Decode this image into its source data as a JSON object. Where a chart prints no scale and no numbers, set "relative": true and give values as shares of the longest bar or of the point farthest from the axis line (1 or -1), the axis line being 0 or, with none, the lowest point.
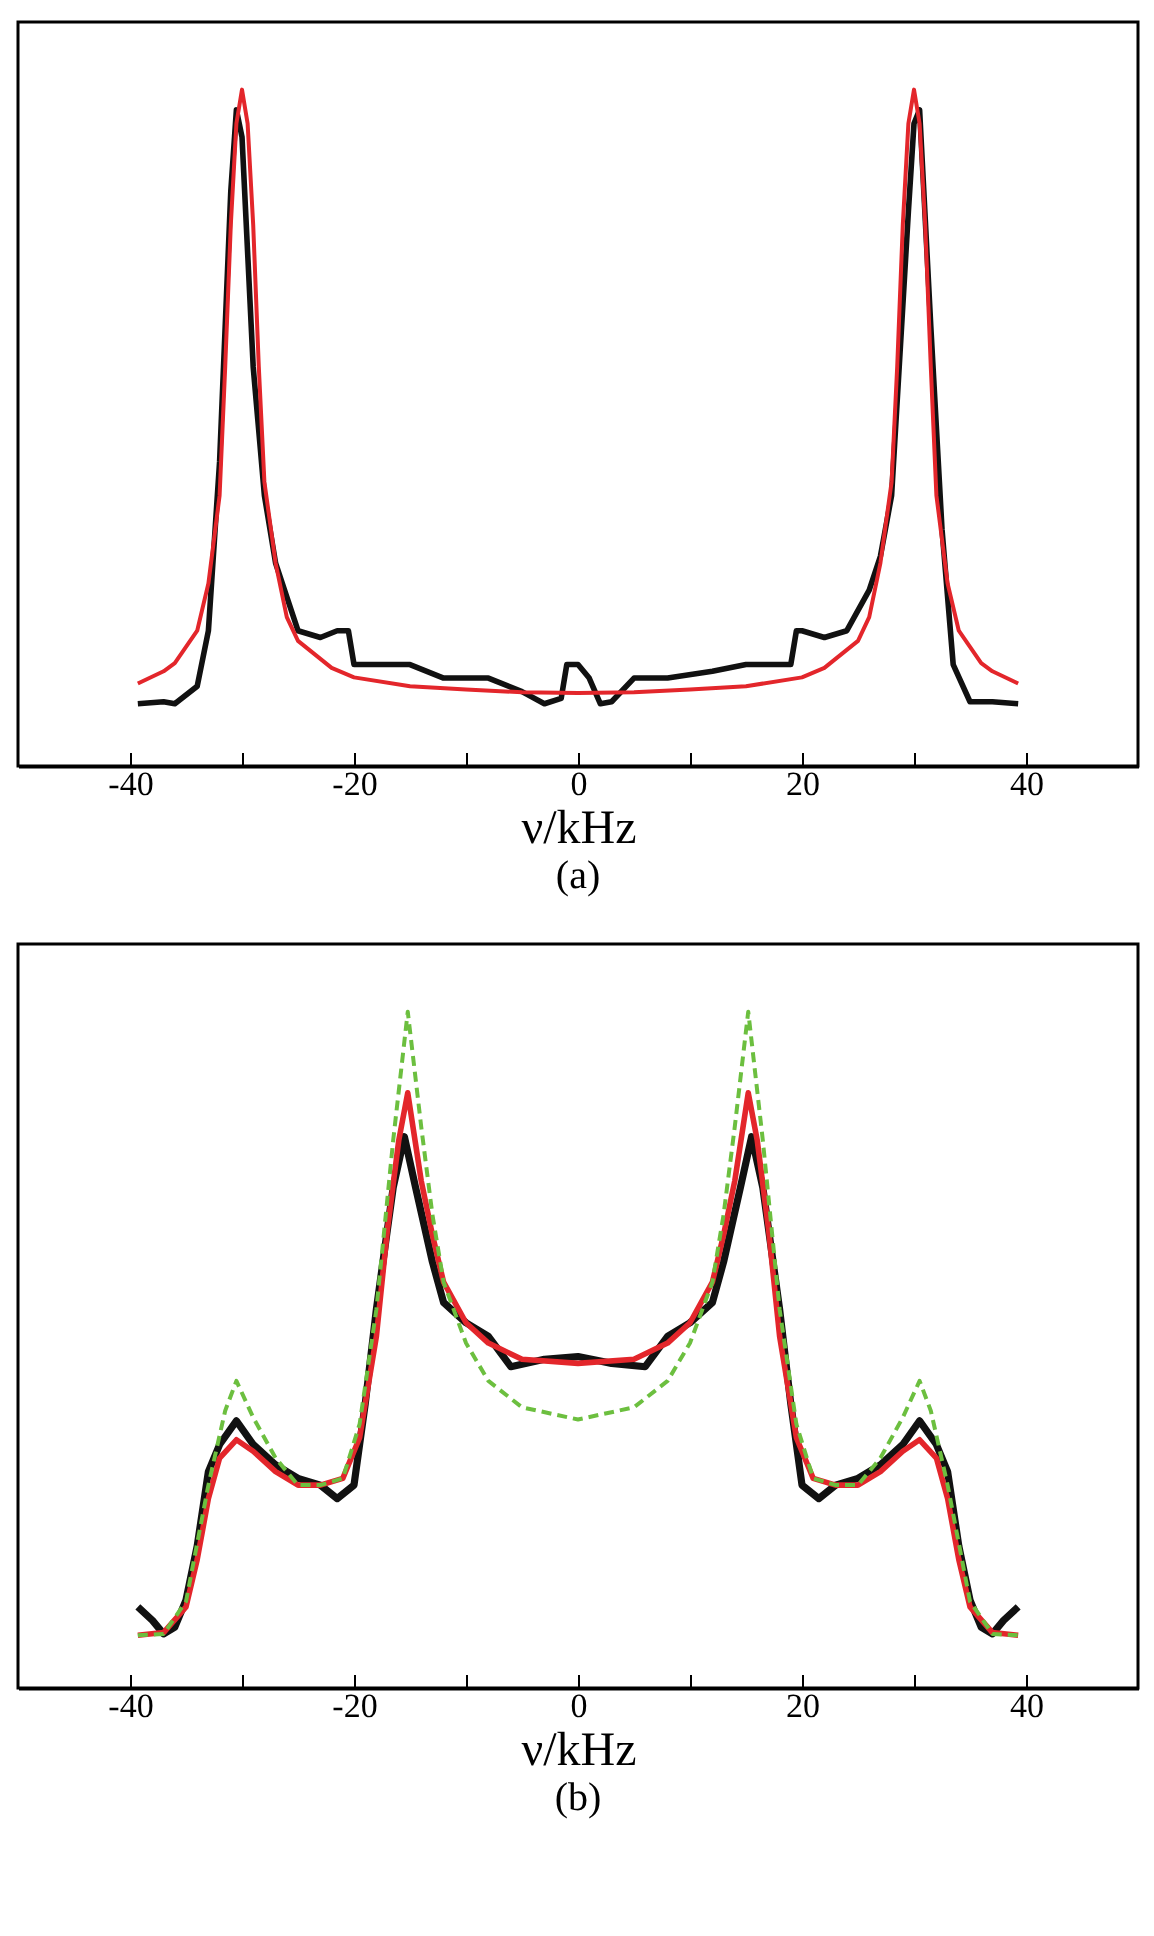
{
  "chart_data": [
    {
      "type": "line",
      "xlabel": "ν/kHz",
      "annotations": [
        "(a)"
      ],
      "relative": true,
      "tick_labels": "x",
      "xlim": [
        -50,
        50
      ],
      "xticks": [
        -40,
        {
          "value": -30,
          "label": null
        },
        -20,
        {
          "value": -10,
          "label": null
        },
        0,
        {
          "value": 10,
          "label": null
        },
        20,
        {
          "value": 30,
          "label": null
        },
        40
      ],
      "series": [
        {
          "color": "#111111",
          "line_style": "solid",
          "x": [
            -39.3,
            -37,
            -36,
            -34,
            -33,
            -32,
            -31,
            -30.5,
            -30,
            -29,
            -28,
            -27,
            -26,
            -25,
            -23,
            -21.5,
            -20.5,
            -20,
            -15,
            -12,
            -8,
            -5,
            -3,
            -1.5,
            -1,
            0,
            1,
            2,
            3,
            5,
            8,
            12,
            15,
            19,
            19.5,
            20,
            22,
            24,
            26,
            27,
            28,
            29.5,
            30,
            30.5,
            31.5,
            32.5,
            33.5,
            35,
            37,
            39.3
          ],
          "values": [
            0.092,
            0.095,
            0.092,
            0.118,
            0.2,
            0.45,
            0.85,
            0.97,
            0.93,
            0.59,
            0.4,
            0.3,
            0.25,
            0.2,
            0.19,
            0.2,
            0.2,
            0.15,
            0.15,
            0.13,
            0.13,
            0.11,
            0.092,
            0.1,
            0.15,
            0.15,
            0.13,
            0.092,
            0.095,
            0.13,
            0.13,
            0.14,
            0.15,
            0.15,
            0.2,
            0.2,
            0.19,
            0.2,
            0.26,
            0.31,
            0.4,
            0.82,
            0.95,
            0.97,
            0.65,
            0.35,
            0.15,
            0.095,
            0.095,
            0.092
          ]
        },
        {
          "color": "#e3262b",
          "line_style": "solid",
          "x": [
            -39.3,
            -37,
            -36,
            -34,
            -33,
            -32,
            -31.5,
            -31,
            -30.5,
            -30,
            -29.5,
            -29,
            -28.5,
            -28,
            -27,
            -26,
            -25,
            -22,
            -20,
            -15,
            -10,
            -5,
            0,
            5,
            10,
            15,
            20,
            22,
            25,
            26,
            27,
            28,
            28.5,
            29,
            29.5,
            30,
            30.5,
            31,
            31.5,
            32,
            33,
            34,
            36,
            37,
            39.3
          ],
          "values": [
            0.122,
            0.14,
            0.152,
            0.2,
            0.27,
            0.4,
            0.59,
            0.8,
            0.95,
            1,
            0.95,
            0.8,
            0.59,
            0.42,
            0.3,
            0.22,
            0.185,
            0.145,
            0.131,
            0.118,
            0.113,
            0.109,
            0.108,
            0.109,
            0.113,
            0.118,
            0.131,
            0.145,
            0.185,
            0.22,
            0.3,
            0.42,
            0.59,
            0.8,
            0.95,
            1,
            0.95,
            0.8,
            0.59,
            0.4,
            0.27,
            0.2,
            0.152,
            0.14,
            0.122
          ]
        }
      ]
    },
    {
      "type": "line",
      "xlabel": "ν/kHz",
      "annotations": [
        "(b)"
      ],
      "relative": true,
      "tick_labels": "x",
      "xlim": [
        -50,
        50
      ],
      "xticks": [
        -40,
        {
          "value": -30,
          "label": null
        },
        -20,
        {
          "value": -10,
          "label": null
        },
        0,
        {
          "value": 10,
          "label": null
        },
        20,
        {
          "value": 30,
          "label": null
        },
        40
      ],
      "series": [
        {
          "color": "#111111",
          "line_style": "solid",
          "x": [
            -39.3,
            -38,
            -37,
            -36,
            -35,
            -34,
            -33,
            -32,
            -30.5,
            -29,
            -27,
            -25,
            -23,
            -21.5,
            -20,
            -19,
            -18,
            -16.5,
            -15.5,
            -14.5,
            -13,
            -12,
            -10,
            -8,
            -6,
            -3,
            0,
            3,
            6,
            8,
            10,
            12,
            13,
            14.5,
            15.5,
            16.5,
            18,
            19,
            20,
            21.5,
            23,
            25,
            27,
            29,
            30.5,
            32,
            33,
            34,
            35,
            36,
            37,
            38,
            39.3
          ],
          "values": [
            0.12,
            0.1,
            0.08,
            0.09,
            0.13,
            0.21,
            0.32,
            0.36,
            0.395,
            0.36,
            0.33,
            0.31,
            0.3,
            0.28,
            0.3,
            0.42,
            0.56,
            0.74,
            0.815,
            0.74,
            0.63,
            0.57,
            0.54,
            0.52,
            0.475,
            0.486,
            0.49,
            0.48,
            0.475,
            0.52,
            0.54,
            0.57,
            0.63,
            0.74,
            0.815,
            0.74,
            0.56,
            0.42,
            0.3,
            0.28,
            0.3,
            0.31,
            0.33,
            0.36,
            0.395,
            0.36,
            0.32,
            0.21,
            0.13,
            0.09,
            0.08,
            0.1,
            0.12
          ]
        },
        {
          "color": "#e3262b",
          "line_style": "solid",
          "x": [
            -39.3,
            -37,
            -35,
            -34,
            -33,
            -32,
            -30.5,
            -29,
            -27,
            -25,
            -23,
            -21,
            -19.5,
            -18,
            -17,
            -16,
            -15.2,
            -14,
            -13,
            -12,
            -10,
            -8,
            -5,
            0,
            5,
            8,
            10,
            12,
            13,
            14,
            15.2,
            16,
            17,
            18,
            19.5,
            21,
            23,
            25,
            27,
            29,
            30.5,
            32,
            33,
            34,
            35,
            37,
            39.3
          ],
          "values": [
            0.078,
            0.082,
            0.12,
            0.19,
            0.28,
            0.34,
            0.367,
            0.35,
            0.32,
            0.3,
            0.3,
            0.31,
            0.37,
            0.52,
            0.68,
            0.81,
            0.88,
            0.75,
            0.67,
            0.6,
            0.54,
            0.51,
            0.486,
            0.48,
            0.486,
            0.51,
            0.54,
            0.6,
            0.67,
            0.75,
            0.88,
            0.81,
            0.68,
            0.52,
            0.37,
            0.31,
            0.3,
            0.3,
            0.32,
            0.35,
            0.367,
            0.34,
            0.28,
            0.19,
            0.12,
            0.082,
            0.078
          ]
        },
        {
          "color": "#6cbf3f",
          "line_style": "dashed",
          "x": [
            -39.3,
            -37,
            -35,
            -33,
            -31.5,
            -30.5,
            -29,
            -27,
            -25,
            -23,
            -21,
            -19.5,
            -18,
            -16.5,
            -15.2,
            -14,
            -13,
            -12,
            -10,
            -8,
            -5,
            0,
            5,
            8,
            10,
            12,
            13,
            14,
            15.2,
            16.5,
            18,
            19.5,
            21,
            23,
            25,
            27,
            29,
            30.5,
            31.5,
            33,
            35,
            37,
            39.3
          ],
          "values": [
            0.078,
            0.08,
            0.128,
            0.3,
            0.41,
            0.454,
            0.4,
            0.34,
            0.3,
            0.3,
            0.31,
            0.39,
            0.56,
            0.81,
            1,
            0.83,
            0.7,
            0.6,
            0.51,
            0.454,
            0.415,
            0.397,
            0.415,
            0.454,
            0.51,
            0.6,
            0.7,
            0.83,
            1,
            0.81,
            0.56,
            0.39,
            0.31,
            0.3,
            0.3,
            0.34,
            0.4,
            0.454,
            0.41,
            0.3,
            0.128,
            0.08,
            0.078
          ]
        }
      ]
    }
  ]
}
